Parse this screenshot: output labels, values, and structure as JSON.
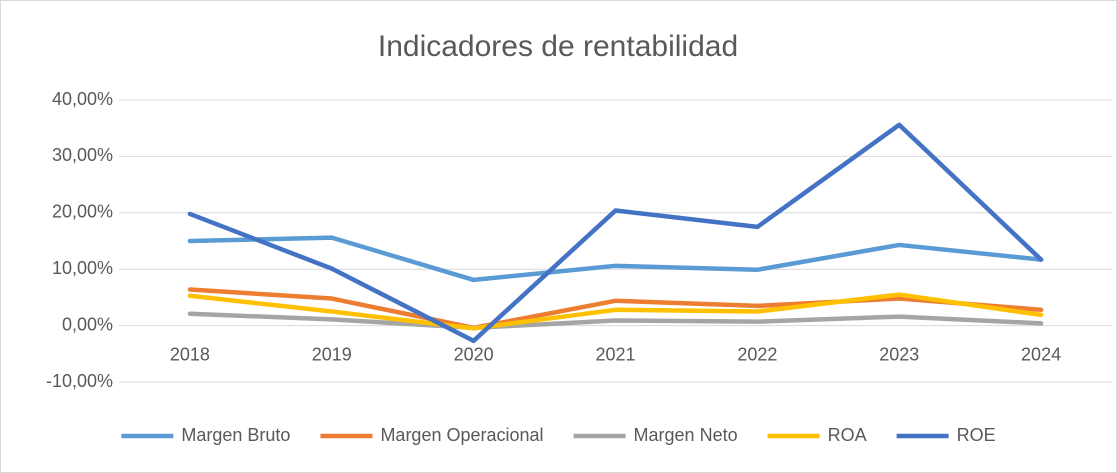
{
  "chart_data": {
    "type": "line",
    "title": "Indicadores de rentabilidad",
    "categories": [
      "2018",
      "2019",
      "2020",
      "2021",
      "2022",
      "2023",
      "2024"
    ],
    "series": [
      {
        "name": "Margen Bruto",
        "color": "#5b9bd5",
        "values": [
          15.0,
          15.6,
          8.1,
          10.6,
          9.9,
          14.3,
          11.7
        ]
      },
      {
        "name": "Margen Operacional",
        "color": "#ed7d31",
        "values": [
          6.4,
          4.8,
          -0.4,
          4.4,
          3.5,
          4.8,
          2.8
        ]
      },
      {
        "name": "Margen Neto",
        "color": "#a5a5a5",
        "values": [
          2.1,
          1.1,
          -0.4,
          0.9,
          0.7,
          1.6,
          0.4
        ]
      },
      {
        "name": "ROA",
        "color": "#ffc000",
        "values": [
          5.3,
          2.5,
          -0.5,
          2.8,
          2.5,
          5.5,
          1.9
        ]
      },
      {
        "name": "ROE",
        "color": "#4472c4",
        "values": [
          19.8,
          10.1,
          -2.7,
          20.4,
          17.5,
          35.6,
          11.7
        ]
      }
    ],
    "ylim": [
      -10,
      40
    ],
    "yticks": [
      {
        "value": -10,
        "label": "-10,00%"
      },
      {
        "value": 0,
        "label": "0,00%"
      },
      {
        "value": 10,
        "label": "10,00%"
      },
      {
        "value": 20,
        "label": "20,00%"
      },
      {
        "value": 30,
        "label": "30,00%"
      },
      {
        "value": 40,
        "label": "40,00%"
      }
    ],
    "grid": true,
    "legend": "bottom"
  }
}
